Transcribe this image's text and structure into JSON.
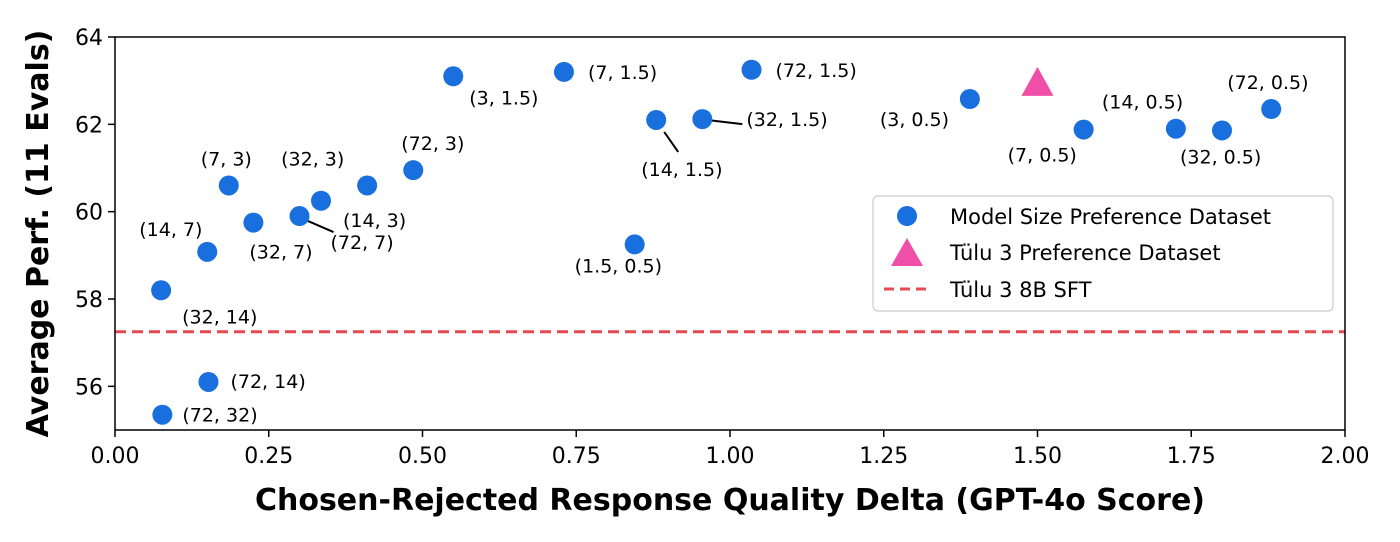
{
  "chart_data": {
    "type": "scatter",
    "xlabel": "Chosen-Rejected Response Quality Delta (GPT-4o Score)",
    "ylabel": "Average Perf. (11 Evals)",
    "xlim": [
      0.0,
      2.0
    ],
    "ylim": [
      55.0,
      64.0
    ],
    "xticks": [
      "0.00",
      "0.25",
      "0.50",
      "0.75",
      "1.00",
      "1.25",
      "1.50",
      "1.75",
      "2.00"
    ],
    "yticks": [
      "56",
      "58",
      "60",
      "62",
      "64"
    ],
    "grid": false,
    "legend_position": "center-right",
    "series": [
      {
        "name": "Model Size Preference Dataset",
        "marker": "circle",
        "color": "#1a6fdf",
        "points": [
          {
            "x": 0.55,
            "y": 63.1,
            "label": "(3, 1.5)"
          },
          {
            "x": 0.73,
            "y": 63.2,
            "label": "(7, 1.5)"
          },
          {
            "x": 1.035,
            "y": 63.25,
            "label": "(72, 1.5)"
          },
          {
            "x": 0.88,
            "y": 62.1,
            "label": "(14, 1.5)"
          },
          {
            "x": 0.955,
            "y": 62.12,
            "label": "(32, 1.5)"
          },
          {
            "x": 1.39,
            "y": 62.58,
            "label": "(3, 0.5)"
          },
          {
            "x": 1.575,
            "y": 61.88,
            "label": "(7, 0.5)"
          },
          {
            "x": 1.725,
            "y": 61.9,
            "label": "(14, 0.5)"
          },
          {
            "x": 1.8,
            "y": 61.86,
            "label": "(32, 0.5)"
          },
          {
            "x": 1.88,
            "y": 62.35,
            "label": "(72, 0.5)"
          },
          {
            "x": 0.845,
            "y": 59.25,
            "label": "(1.5, 0.5)"
          },
          {
            "x": 0.185,
            "y": 60.6,
            "label": "(7, 3)"
          },
          {
            "x": 0.41,
            "y": 60.6,
            "label": "(32, 3)"
          },
          {
            "x": 0.485,
            "y": 60.95,
            "label": "(72, 3)"
          },
          {
            "x": 0.335,
            "y": 60.25,
            "label": "(14, 3)"
          },
          {
            "x": 0.225,
            "y": 59.75,
            "label": "(32, 7)"
          },
          {
            "x": 0.3,
            "y": 59.9,
            "label": "(72, 7)"
          },
          {
            "x": 0.15,
            "y": 59.08,
            "label": "(14, 7)"
          },
          {
            "x": 0.075,
            "y": 58.2,
            "label": "(32, 14)"
          },
          {
            "x": 0.152,
            "y": 56.1,
            "label": "(72, 14)"
          },
          {
            "x": 0.077,
            "y": 55.35,
            "label": "(72, 32)"
          }
        ]
      },
      {
        "name": "Tülu 3 Preference Dataset",
        "marker": "triangle",
        "color": "#ef4fa6",
        "points": [
          {
            "x": 1.5,
            "y": 62.95
          }
        ]
      },
      {
        "name": "Tülu 3 8B SFT",
        "marker": "hline",
        "color": "#e8494f",
        "y": 57.25
      }
    ]
  }
}
